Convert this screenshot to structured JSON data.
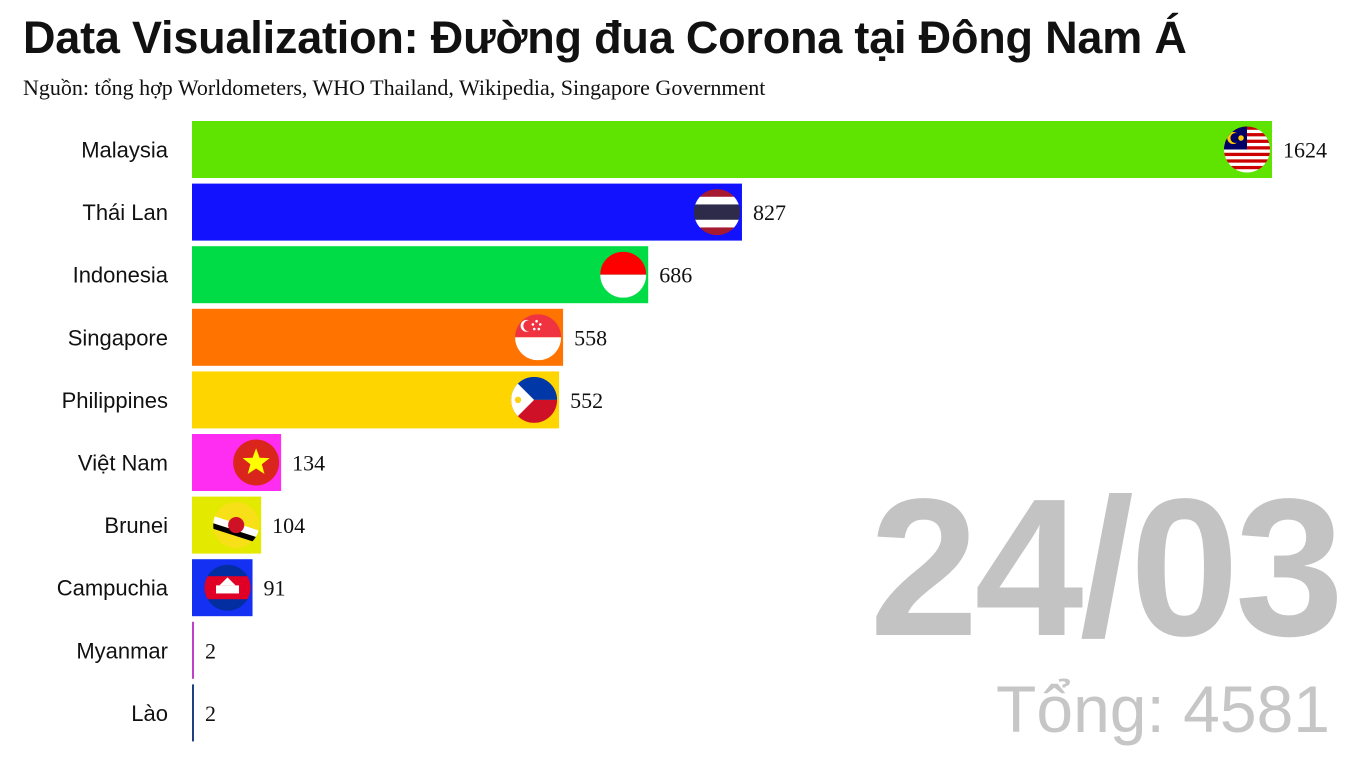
{
  "title": "Data Visualization: Đường đua Corona tại Đông Nam Á",
  "subtitle": "Nguồn: tổng hợp Worldometers, WHO Thailand, Wikipedia, Singapore Government",
  "date_label": "24/03",
  "total": {
    "label": "Tổng:",
    "value": "4581"
  },
  "chart_data": {
    "type": "bar",
    "orientation": "horizontal",
    "title": "Data Visualization: Đường đua Corona tại Đông Nam Á",
    "categories": [
      "Malaysia",
      "Thái Lan",
      "Indonesia",
      "Singapore",
      "Philippines",
      "Việt Nam",
      "Brunei",
      "Campuchia",
      "Myanmar",
      "Lào"
    ],
    "values": [
      1624,
      827,
      686,
      558,
      552,
      134,
      104,
      91,
      2,
      2
    ],
    "colors": [
      "#5fe300",
      "#1212ff",
      "#00dc45",
      "#ff7300",
      "#ffd500",
      "#ff2cf2",
      "#e3ea00",
      "#1430f2",
      "#c040c8",
      "#1f3f7f"
    ],
    "flag_icons": [
      "malaysia-flag-icon",
      "thailand-flag-icon",
      "indonesia-flag-icon",
      "singapore-flag-icon",
      "philippines-flag-icon",
      "vietnam-flag-icon",
      "brunei-flag-icon",
      "cambodia-flag-icon",
      "",
      ""
    ],
    "xlim": [
      0,
      1624
    ],
    "grid": false,
    "legend": "none"
  }
}
